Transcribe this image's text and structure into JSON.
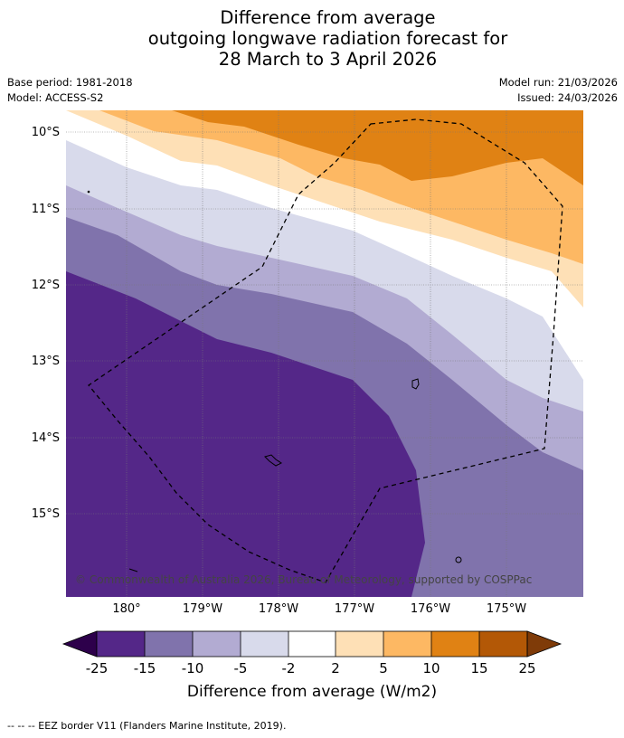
{
  "title": {
    "line1": "Difference from average",
    "line2": "outgoing longwave radiation forecast for",
    "line3": "28 March to 3 April 2026"
  },
  "meta": {
    "base_period": "Base period: 1981-2018",
    "model": "Model: ACCESS-S2",
    "model_run": "Model run: 21/03/2026",
    "issued": "Issued: 24/03/2026"
  },
  "map": {
    "credit": "© Commonwealth of Australia 2026, Bureau of Meteorology, supported by COSPPac",
    "lat_labels": [
      "10°S",
      "11°S",
      "12°S",
      "13°S",
      "14°S",
      "15°S"
    ],
    "lon_labels": [
      "180°",
      "179°W",
      "178°W",
      "177°W",
      "176°W",
      "175°W"
    ]
  },
  "colorbar": {
    "title": "Difference from average (W/m2)",
    "labels": [
      "-25",
      "-15",
      "-10",
      "-5",
      "-2",
      "2",
      "5",
      "10",
      "15",
      "25"
    ],
    "colors": {
      "under": "#2d004b",
      "c1": "#542788",
      "c2": "#8073ac",
      "c3": "#b2abd2",
      "c4": "#d8daeb",
      "c5": "#ffffff",
      "c6": "#fee0b6",
      "c7": "#fdb863",
      "c8": "#e08214",
      "c9": "#b35806",
      "over": "#7f3b08"
    }
  },
  "footnote": "-- -- -- EEZ border V11 (Flanders Marine Institute, 2019)."
}
